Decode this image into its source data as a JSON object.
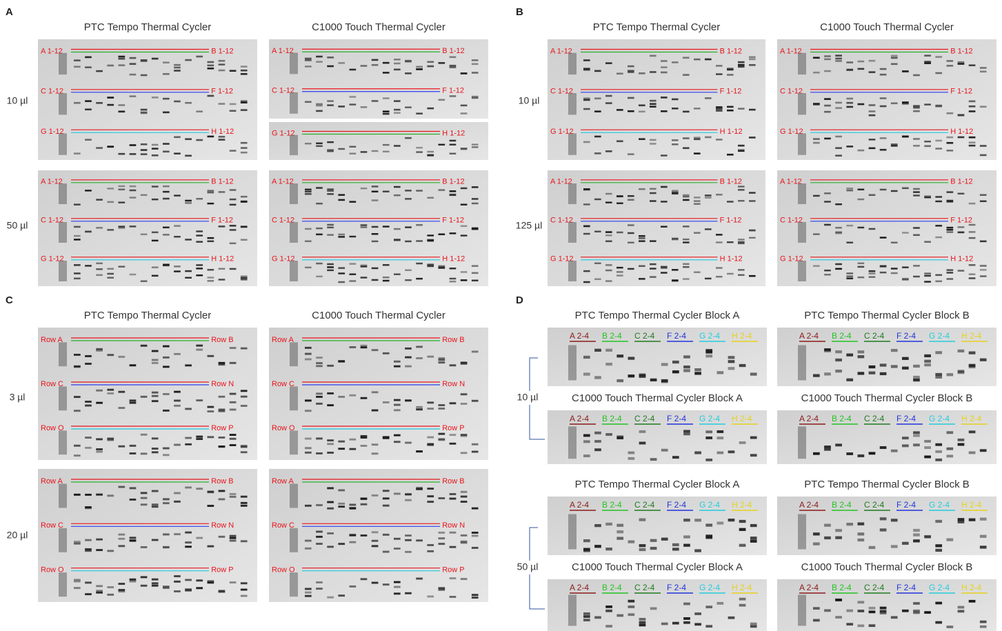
{
  "panels": [
    {
      "letter": "A",
      "columns": [
        "PTC Tempo Thermal Cycler",
        "C1000 Touch Thermal Cycler"
      ],
      "rows": [
        {
          "label": "10 µl",
          "gels": [
            {
              "labels": [
                "A 1-12",
                "B 1-12",
                "C 1-12",
                "F 1-12",
                "G 1-12",
                "H 1-12"
              ]
            },
            {
              "labels": [
                "A 1-12",
                "B 1-12",
                "C 1-12",
                "F 1-12"
              ]
            },
            {
              "labels": [
                "G 1-12",
                "H 1-12"
              ]
            }
          ]
        },
        {
          "label": "50 µl",
          "gels": [
            {
              "labels": [
                "A 1-12",
                "B 1-12",
                "C 1-12",
                "F 1-12",
                "G 1-12",
                "H 1-12"
              ]
            },
            {
              "labels": [
                "A 1-12",
                "B 1-12",
                "C 1-12",
                "F 1-12",
                "G 1-12",
                "H 1-12"
              ]
            }
          ]
        }
      ]
    },
    {
      "letter": "B",
      "columns": [
        "PTC Tempo Thermal Cycler",
        "C1000 Touch Thermal Cycler"
      ],
      "rows": [
        {
          "label": "10 µl",
          "gels": [
            {
              "labels": [
                "A 1-12",
                "B 1-12",
                "C 1-12",
                "F 1-12",
                "G 1-12",
                "H 1-12"
              ]
            },
            {
              "labels": [
                "A 1-12",
                "B 1-12",
                "C 1-12",
                "F 1-12",
                "G 1-12",
                "H 1-12"
              ]
            }
          ]
        },
        {
          "label": "125 µl",
          "gels": [
            {
              "labels": [
                "A 1-12",
                "B 1-12",
                "C 1-12",
                "F 1-12",
                "G 1-12",
                "H 1-12"
              ]
            },
            {
              "labels": [
                "A 1-12",
                "B 1-12",
                "C 1-12",
                "F 1-12",
                "G 1-12",
                "H 1-12"
              ]
            }
          ]
        }
      ]
    },
    {
      "letter": "C",
      "columns": [
        "PTC Tempo Thermal Cycler",
        "C1000 Touch Thermal Cycler"
      ],
      "rows": [
        {
          "label": "3 µl",
          "gels": [
            {
              "labels": [
                "Row A",
                "Row B",
                "Row C",
                "Row N",
                "Row O",
                "Row P"
              ]
            },
            {
              "labels": [
                "Row A",
                "Row B",
                "Row C",
                "Row N",
                "Row O",
                "Row P"
              ]
            }
          ]
        },
        {
          "label": "20 µl",
          "gels": [
            {
              "labels": [
                "Row A",
                "Row B",
                "Row C",
                "Row N",
                "Row O",
                "Row P"
              ]
            },
            {
              "labels": [
                "Row A",
                "Row B",
                "Row C",
                "Row N",
                "Row O",
                "Row P"
              ]
            }
          ]
        }
      ]
    },
    {
      "letter": "D",
      "rows": [
        {
          "label": "10 µl",
          "gels": [
            {
              "title": "PTC Tempo Thermal Cycler Block A",
              "labels": [
                "A 2-4",
                "B 2-4",
                "C 2-4",
                "F 2-4",
                "G 2-4",
                "H 2-4"
              ]
            },
            {
              "title": "PTC Tempo Thermal Cycler Block B",
              "labels": [
                "A 2-4",
                "B 2-4",
                "C 2-4",
                "F 2-4",
                "G 2-4",
                "H 2-4"
              ]
            },
            {
              "title": "C1000 Touch Thermal Cycler Block A",
              "labels": [
                "A 2-4",
                "B 2-4",
                "C 2-4",
                "F 2-4",
                "G 2-4",
                "H 2-4"
              ]
            },
            {
              "title": "C1000 Touch Thermal Cycler Block B",
              "labels": [
                "A 2-4",
                "B 2-4",
                "C 2-4",
                "F 2-4",
                "G 2-4",
                "H 2-4"
              ]
            }
          ]
        },
        {
          "label": "50 µl",
          "gels": [
            {
              "title": "PTC Tempo Thermal Cycler Block A",
              "labels": [
                "A 2-4",
                "B 2-4",
                "C 2-4",
                "F 2-4",
                "G 2-4",
                "H 2-4"
              ]
            },
            {
              "title": "PTC Tempo Thermal Cycler Block B",
              "labels": [
                "A 2-4",
                "B 2-4",
                "C 2-4",
                "F 2-4",
                "G 2-4",
                "H 2-4"
              ]
            },
            {
              "title": "C1000 Touch Thermal Cycler Block A",
              "labels": [
                "A 2-4",
                "B 2-4",
                "C 2-4",
                "F 2-4",
                "G 2-4",
                "H 2-4"
              ]
            },
            {
              "title": "C1000 Touch Thermal Cycler Block B",
              "labels": [
                "A 2-4",
                "B 2-4",
                "C 2-4",
                "F 2-4",
                "G 2-4",
                "H 2-4"
              ]
            }
          ]
        }
      ]
    }
  ]
}
